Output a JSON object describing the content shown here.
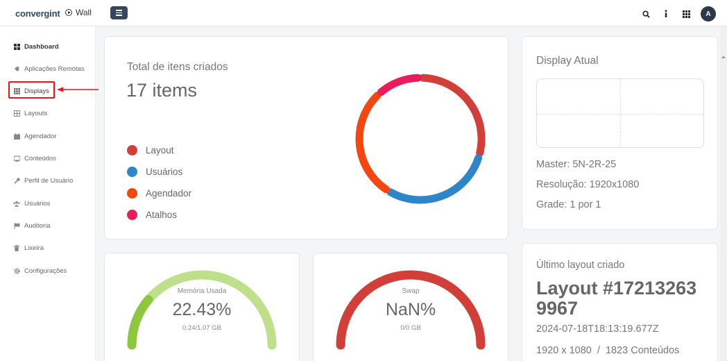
{
  "header": {
    "logo_text": "convergint",
    "app_label": "Wall",
    "avatar_initial": "A"
  },
  "sidebar": {
    "items": [
      {
        "label": "Dashboard",
        "icon": "dashboard-icon"
      },
      {
        "label": "Aplicações Remotas",
        "icon": "puzzle-icon"
      },
      {
        "label": "Displays",
        "icon": "grid-icon"
      },
      {
        "label": "Layouts",
        "icon": "layout-icon"
      },
      {
        "label": "Agendador",
        "icon": "calendar-icon"
      },
      {
        "label": "Conteúdos",
        "icon": "content-icon"
      },
      {
        "label": "Perfil de Usuário",
        "icon": "key-icon"
      },
      {
        "label": "Usuários",
        "icon": "users-icon"
      },
      {
        "label": "Auditoria",
        "icon": "flag-icon"
      },
      {
        "label": "Lixeira",
        "icon": "trash-icon"
      },
      {
        "label": "Configurações",
        "icon": "gear-icon"
      }
    ]
  },
  "total": {
    "title": "Total de itens criados",
    "count": "17 items",
    "legend": [
      {
        "label": "Layout",
        "color": "#d13f38"
      },
      {
        "label": "Usuários",
        "color": "#2e86c9"
      },
      {
        "label": "Agendador",
        "color": "#f4470f"
      },
      {
        "label": "Atalhos",
        "color": "#ec1c5c"
      }
    ]
  },
  "chart_data": {
    "type": "pie",
    "style": "donut",
    "categories": [
      "Layout",
      "Usuários",
      "Agendador",
      "Atalhos"
    ],
    "values": [
      5,
      5,
      5,
      2
    ],
    "colors": [
      "#d13f38",
      "#2e86c9",
      "#f4470f",
      "#ec1c5c"
    ]
  },
  "display": {
    "title": "Display Atual",
    "master": "Master: 5N-2R-25",
    "resolution": "Resolução: 1920x1080",
    "grid": "Grade: 1 por 1"
  },
  "memory": {
    "label": "Memória Usada",
    "value": "22.43%",
    "percent": 22.43,
    "detail": "0.24/1.07 GB",
    "fill_color": "#8dc63f",
    "track_color": "#bfe08a"
  },
  "swap": {
    "label": "Swap",
    "value": "NaN%",
    "detail": "0/0 GB",
    "track_color": "#d13f38"
  },
  "last_layout": {
    "title": "Último layout criado",
    "name": "Layout #172132639967",
    "date": "2024-07-18T18:13:19.677Z",
    "meta": "1920 x 1080  /  1823 Conteúdos"
  }
}
